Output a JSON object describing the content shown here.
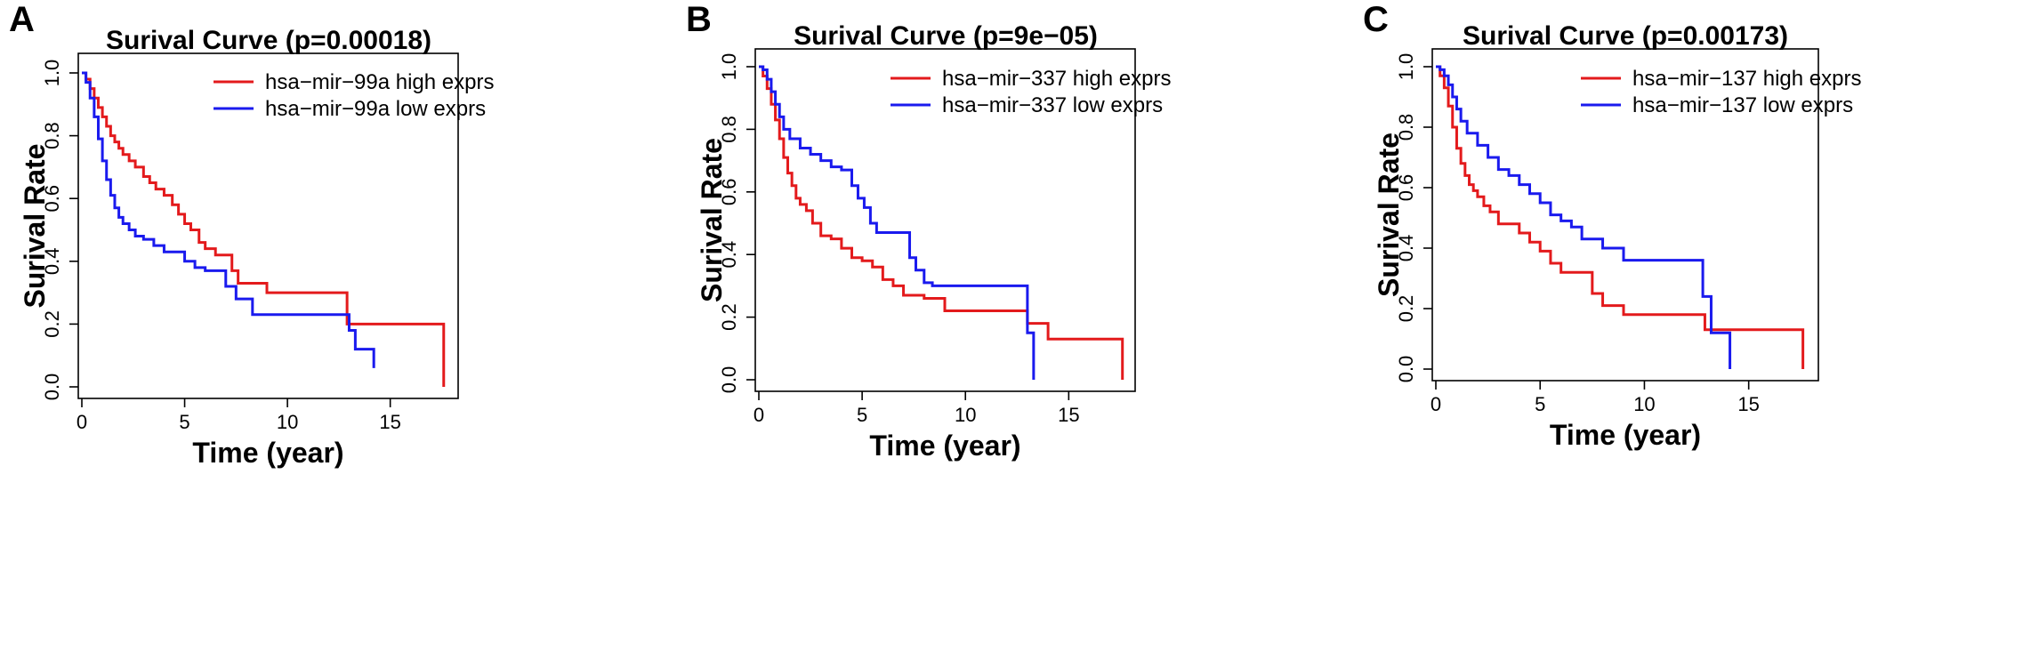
{
  "colors": {
    "high": "#e31a1c",
    "low": "#1a1aee"
  },
  "chart_data": [
    {
      "panel": "A",
      "type": "line",
      "step": true,
      "title": "Surival Curve (p=0.00018)",
      "xlabel": "Time (year)",
      "ylabel": "Surival Rate",
      "xlim": [
        0,
        18
      ],
      "ylim": [
        0,
        1
      ],
      "xticks": [
        0,
        5,
        10,
        15
      ],
      "yticks": [
        0.0,
        0.2,
        0.4,
        0.6,
        0.8,
        1.0
      ],
      "ytick_labels": [
        "0.0",
        "0.2",
        "0.4",
        "0.6",
        "0.8",
        "1.0"
      ],
      "legend_position": "top-right",
      "series": [
        {
          "name": "hsa−mir−99a high exprs",
          "color_key": "high",
          "x": [
            0,
            0.2,
            0.4,
            0.6,
            0.8,
            1.0,
            1.2,
            1.4,
            1.6,
            1.8,
            2.0,
            2.3,
            2.6,
            3.0,
            3.3,
            3.6,
            4.0,
            4.4,
            4.7,
            5.0,
            5.3,
            5.7,
            6.0,
            6.5,
            7.0,
            7.3,
            7.6,
            8.0,
            9.0,
            10.0,
            12.0,
            12.9,
            13.5,
            16.0,
            17.6
          ],
          "y": [
            1.0,
            0.98,
            0.95,
            0.92,
            0.89,
            0.86,
            0.83,
            0.8,
            0.78,
            0.76,
            0.74,
            0.72,
            0.7,
            0.67,
            0.65,
            0.63,
            0.61,
            0.58,
            0.55,
            0.52,
            0.5,
            0.46,
            0.44,
            0.42,
            0.42,
            0.37,
            0.33,
            0.33,
            0.3,
            0.3,
            0.3,
            0.2,
            0.2,
            0.2,
            0.0
          ]
        },
        {
          "name": "hsa−mir−99a low exprs",
          "color_key": "low",
          "x": [
            0,
            0.2,
            0.4,
            0.6,
            0.8,
            1.0,
            1.2,
            1.4,
            1.6,
            1.8,
            2.0,
            2.3,
            2.6,
            3.0,
            3.5,
            4.0,
            5.0,
            5.5,
            6.0,
            7.0,
            7.5,
            8.0,
            8.3,
            10.0,
            12.0,
            13.0,
            13.3,
            14.2
          ],
          "y": [
            1.0,
            0.97,
            0.92,
            0.86,
            0.79,
            0.72,
            0.66,
            0.61,
            0.57,
            0.54,
            0.52,
            0.5,
            0.48,
            0.47,
            0.45,
            0.43,
            0.4,
            0.38,
            0.37,
            0.32,
            0.28,
            0.28,
            0.23,
            0.23,
            0.23,
            0.18,
            0.12,
            0.06
          ]
        }
      ]
    },
    {
      "panel": "B",
      "type": "line",
      "step": true,
      "title": "Surival Curve (p=9e−05)",
      "xlabel": "Time (year)",
      "ylabel": "Surival Rate",
      "xlim": [
        0,
        18
      ],
      "ylim": [
        0,
        1
      ],
      "xticks": [
        0,
        5,
        10,
        15
      ],
      "yticks": [
        0.0,
        0.2,
        0.4,
        0.6,
        0.8,
        1.0
      ],
      "ytick_labels": [
        "0.0",
        "0.2",
        "0.4",
        "0.6",
        "0.8",
        "1.0"
      ],
      "legend_position": "top-right",
      "series": [
        {
          "name": "hsa−mir−337 high exprs",
          "color_key": "high",
          "x": [
            0,
            0.2,
            0.4,
            0.6,
            0.8,
            1.0,
            1.2,
            1.4,
            1.6,
            1.8,
            2.0,
            2.3,
            2.6,
            3.0,
            3.5,
            4.0,
            4.5,
            5.0,
            5.5,
            6.0,
            6.5,
            7.0,
            8.0,
            9.0,
            10.0,
            12.0,
            13.0,
            14.0,
            15.0,
            17.6
          ],
          "y": [
            1.0,
            0.97,
            0.93,
            0.88,
            0.83,
            0.77,
            0.71,
            0.66,
            0.62,
            0.58,
            0.56,
            0.54,
            0.5,
            0.46,
            0.45,
            0.42,
            0.39,
            0.38,
            0.36,
            0.32,
            0.3,
            0.27,
            0.26,
            0.22,
            0.22,
            0.22,
            0.18,
            0.13,
            0.13,
            0.0
          ]
        },
        {
          "name": "hsa−mir−337 low exprs",
          "color_key": "low",
          "x": [
            0,
            0.2,
            0.4,
            0.6,
            0.8,
            1.0,
            1.2,
            1.5,
            2.0,
            2.5,
            3.0,
            3.5,
            4.0,
            4.5,
            4.8,
            5.1,
            5.4,
            5.7,
            6.5,
            7.3,
            7.6,
            8.0,
            8.4,
            10.0,
            12.0,
            13.0,
            13.3
          ],
          "y": [
            1.0,
            0.99,
            0.96,
            0.92,
            0.88,
            0.84,
            0.8,
            0.77,
            0.74,
            0.72,
            0.7,
            0.68,
            0.67,
            0.62,
            0.58,
            0.55,
            0.5,
            0.47,
            0.47,
            0.39,
            0.35,
            0.31,
            0.3,
            0.3,
            0.3,
            0.15,
            0.0
          ]
        }
      ]
    },
    {
      "panel": "C",
      "type": "line",
      "step": true,
      "title": "Surival Curve (p=0.00173)",
      "xlabel": "Time (year)",
      "ylabel": "Surival Rate",
      "xlim": [
        0,
        18
      ],
      "ylim": [
        0,
        1
      ],
      "xticks": [
        0,
        5,
        10,
        15
      ],
      "yticks": [
        0.0,
        0.2,
        0.4,
        0.6,
        0.8,
        1.0
      ],
      "ytick_labels": [
        "0.0",
        "0.2",
        "0.4",
        "0.6",
        "0.8",
        "1.0"
      ],
      "legend_position": "top-right",
      "series": [
        {
          "name": "hsa−mir−137 high exprs",
          "color_key": "high",
          "x": [
            0,
            0.2,
            0.4,
            0.6,
            0.8,
            1.0,
            1.2,
            1.4,
            1.6,
            1.8,
            2.0,
            2.3,
            2.6,
            3.0,
            3.5,
            4.0,
            4.5,
            5.0,
            5.5,
            6.0,
            6.5,
            7.0,
            7.5,
            8.0,
            9.0,
            10.0,
            12.0,
            12.9,
            13.5,
            15.0,
            17.6
          ],
          "y": [
            1.0,
            0.97,
            0.93,
            0.87,
            0.8,
            0.73,
            0.68,
            0.64,
            0.61,
            0.59,
            0.57,
            0.54,
            0.52,
            0.48,
            0.48,
            0.45,
            0.42,
            0.39,
            0.35,
            0.32,
            0.32,
            0.32,
            0.25,
            0.21,
            0.18,
            0.18,
            0.18,
            0.13,
            0.13,
            0.13,
            0.0
          ]
        },
        {
          "name": "hsa−mir−137 low exprs",
          "color_key": "low",
          "x": [
            0,
            0.2,
            0.4,
            0.6,
            0.8,
            1.0,
            1.2,
            1.5,
            2.0,
            2.5,
            3.0,
            3.5,
            4.0,
            4.5,
            5.0,
            5.5,
            6.0,
            6.5,
            7.0,
            8.0,
            9.0,
            10.0,
            12.0,
            12.8,
            13.2,
            14.1
          ],
          "y": [
            1.0,
            0.99,
            0.97,
            0.94,
            0.9,
            0.86,
            0.82,
            0.78,
            0.74,
            0.7,
            0.66,
            0.64,
            0.61,
            0.58,
            0.55,
            0.51,
            0.49,
            0.47,
            0.43,
            0.4,
            0.36,
            0.36,
            0.36,
            0.24,
            0.12,
            0.0
          ]
        }
      ]
    }
  ]
}
